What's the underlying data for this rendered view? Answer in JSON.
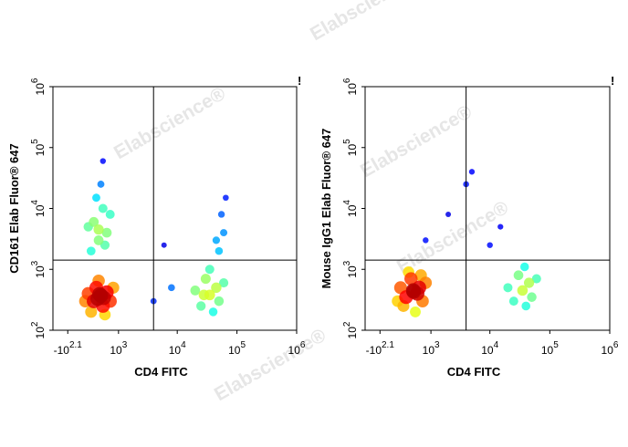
{
  "watermark": "Elabscience®",
  "chart_data": [
    {
      "type": "scatter",
      "xlabel": "CD4 FITC",
      "ylabel": "CD161 Elab Fluor® 647",
      "flag": "!",
      "xscale": "asinh",
      "yscale": "log",
      "colormap": "jet",
      "xlim": [
        -400,
        1000000
      ],
      "ylim": [
        100,
        1000000
      ],
      "xticks": [
        {
          "value": -126,
          "label": "-10",
          "exponent": "2.1"
        },
        {
          "value": 1000,
          "label": "10",
          "exponent": "3"
        },
        {
          "value": 10000,
          "label": "10",
          "exponent": "4"
        },
        {
          "value": 100000,
          "label": "10",
          "exponent": "5"
        },
        {
          "value": 1000000,
          "label": "10",
          "exponent": "6"
        }
      ],
      "yticks": [
        {
          "value": 100,
          "label": "10",
          "exponent": "2"
        },
        {
          "value": 1000,
          "label": "10",
          "exponent": "3"
        },
        {
          "value": 10000,
          "label": "10",
          "exponent": "4"
        },
        {
          "value": 100000,
          "label": "10",
          "exponent": "5"
        },
        {
          "value": 1000000,
          "label": "10",
          "exponent": "6"
        }
      ],
      "gates": {
        "x": 4000,
        "y": 1420
      },
      "x": [
        450,
        300,
        600,
        350,
        500,
        250,
        700,
        400,
        200,
        800,
        550,
        150,
        420,
        380,
        520,
        400,
        300,
        500,
        600,
        250,
        700,
        350,
        450,
        200,
        550,
        400,
        500,
        35000,
        25000,
        45000,
        30000,
        50000,
        20000,
        40000,
        60000,
        35000,
        28000,
        50000,
        60000,
        55000,
        65000,
        45000,
        4000,
        8000,
        6000
      ],
      "y": [
        370,
        300,
        420,
        500,
        250,
        200,
        300,
        650,
        400,
        500,
        180,
        300,
        390,
        330,
        340,
        3000,
        6000,
        10000,
        4000,
        2000,
        8000,
        15000,
        25000,
        5000,
        2500,
        4500,
        60000,
        380,
        250,
        500,
        700,
        300,
        450,
        200,
        600,
        1000,
        380,
        2000,
        4000,
        8000,
        15000,
        3000,
        300,
        500,
        2500
      ]
    },
    {
      "type": "scatter",
      "xlabel": "CD4 FITC",
      "ylabel": "Mouse IgG1 Elab Fluor® 647",
      "flag": "!",
      "xscale": "asinh",
      "yscale": "log",
      "colormap": "jet",
      "xlim": [
        -400,
        1000000
      ],
      "ylim": [
        100,
        1000000
      ],
      "xticks": [
        {
          "value": -126,
          "label": "-10",
          "exponent": "2.1"
        },
        {
          "value": 1000,
          "label": "10",
          "exponent": "3"
        },
        {
          "value": 10000,
          "label": "10",
          "exponent": "4"
        },
        {
          "value": 100000,
          "label": "10",
          "exponent": "5"
        },
        {
          "value": 1000000,
          "label": "10",
          "exponent": "6"
        }
      ],
      "yticks": [
        {
          "value": 100,
          "label": "10",
          "exponent": "2"
        },
        {
          "value": 1000,
          "label": "10",
          "exponent": "3"
        },
        {
          "value": 10000,
          "label": "10",
          "exponent": "4"
        },
        {
          "value": 100000,
          "label": "10",
          "exponent": "5"
        },
        {
          "value": 1000000,
          "label": "10",
          "exponent": "6"
        }
      ],
      "gates": {
        "x": 4000,
        "y": 1420
      },
      "x": [
        450,
        300,
        600,
        250,
        700,
        400,
        200,
        800,
        500,
        350,
        550,
        150,
        650,
        460,
        35000,
        25000,
        45000,
        30000,
        50000,
        20000,
        40000,
        60000,
        38000,
        4000,
        5000,
        15000,
        2000,
        800,
        10000
      ],
      "y": [
        450,
        350,
        500,
        250,
        300,
        700,
        500,
        600,
        200,
        900,
        400,
        300,
        800,
        430,
        450,
        300,
        600,
        800,
        350,
        500,
        250,
        700,
        1100,
        25000,
        40000,
        5000,
        8000,
        3000,
        2500
      ]
    }
  ]
}
